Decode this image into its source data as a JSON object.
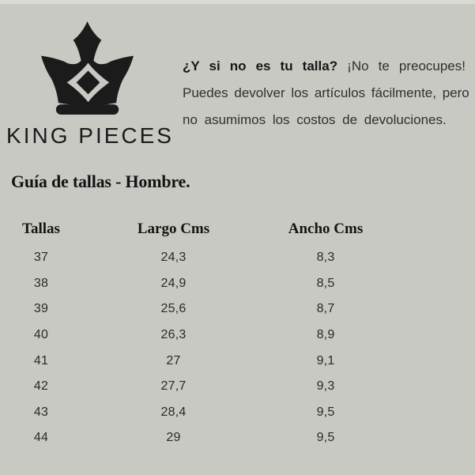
{
  "page": {
    "background_color": "#c8c9c3",
    "top_strip_color": "#dadbd5"
  },
  "brand": {
    "name": "KING PIECES",
    "logo_icon": "crown-icon",
    "logo_color": "#1b1b1b"
  },
  "notice": {
    "line1_bold": "¿Y si no es tu talla?",
    "line1_rest": "¡No te preocupes!",
    "line2": "Puedes devolver los artículos fácilmente, pero",
    "line3": "no asumimos los costos de devoluciones."
  },
  "section": {
    "title": "Guía de tallas - Hombre."
  },
  "size_table": {
    "headers": [
      "Tallas",
      "Largo Cms",
      "Ancho Cms"
    ],
    "rows": [
      [
        "37",
        "24,3",
        "8,3"
      ],
      [
        "38",
        "24,9",
        "8,5"
      ],
      [
        "39",
        "25,6",
        "8,7"
      ],
      [
        "40",
        "26,3",
        "8,9"
      ],
      [
        "41",
        "27",
        "9,1"
      ],
      [
        "42",
        "27,7",
        "9,3"
      ],
      [
        "43",
        "28,4",
        "9,5"
      ],
      [
        "44",
        "29",
        "9,5"
      ]
    ]
  }
}
